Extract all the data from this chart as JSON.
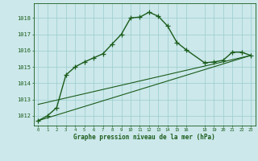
{
  "line1_x": [
    0,
    1,
    2,
    3,
    4,
    5,
    6,
    7,
    8,
    9,
    10,
    11,
    12,
    13,
    14,
    15,
    16,
    18,
    19,
    20,
    21,
    22,
    23
  ],
  "line1_y": [
    1011.7,
    1012.0,
    1012.5,
    1014.5,
    1015.0,
    1015.3,
    1015.55,
    1015.8,
    1016.4,
    1017.0,
    1018.0,
    1018.05,
    1018.35,
    1018.1,
    1017.5,
    1016.5,
    1016.05,
    1015.25,
    1015.3,
    1015.4,
    1015.9,
    1015.9,
    1015.7
  ],
  "line2_x": [
    0,
    23
  ],
  "line2_y": [
    1011.7,
    1015.7
  ],
  "line3_x": [
    0,
    23
  ],
  "line3_y": [
    1012.7,
    1015.7
  ],
  "line_color": "#1a5c1a",
  "bg_color": "#cce8eb",
  "grid_color": "#99cccc",
  "title": "Graphe pression niveau de la mer (hPa)",
  "ylabel_ticks": [
    1012,
    1013,
    1014,
    1015,
    1016,
    1017,
    1018
  ],
  "xlabel_ticks": [
    0,
    1,
    2,
    3,
    4,
    5,
    6,
    7,
    8,
    9,
    10,
    11,
    12,
    13,
    14,
    15,
    16,
    18,
    19,
    20,
    21,
    22,
    23
  ],
  "xlabel_labels": [
    "0",
    "1",
    "2",
    "3",
    "4",
    "5",
    "6",
    "7",
    "8",
    "9",
    "10",
    "11",
    "12",
    "13",
    "14",
    "15",
    "16",
    "18",
    "19",
    "20",
    "21",
    "22",
    "23"
  ],
  "ylim": [
    1011.4,
    1018.9
  ],
  "xlim": [
    -0.5,
    23.5
  ],
  "linewidth": 1.0,
  "markersize": 4.0
}
